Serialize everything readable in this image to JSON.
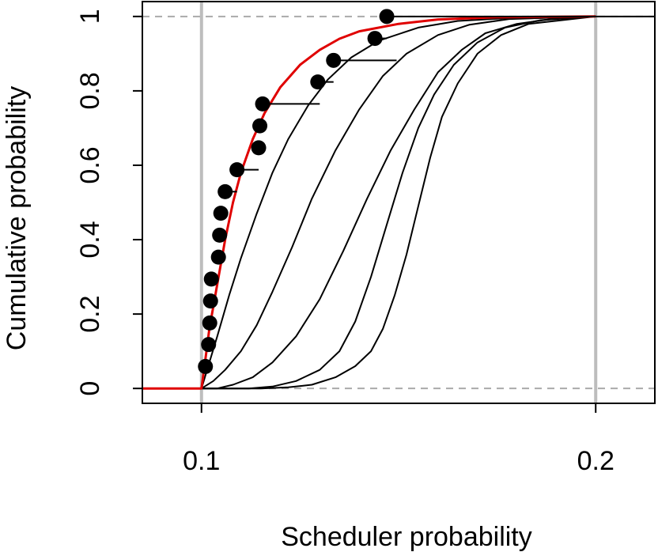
{
  "chart_data": {
    "type": "line",
    "title": "",
    "xlabel": "Scheduler probability",
    "ylabel": "Cumulative probability",
    "xlim": [
      0.085,
      0.215
    ],
    "ylim": [
      -0.04,
      1.04
    ],
    "x_ticks": [
      0.1,
      0.2
    ],
    "x_tick_labels": [
      "0.1",
      "0.2"
    ],
    "y_ticks": [
      0,
      0.2,
      0.4,
      0.6,
      0.8,
      1
    ],
    "y_tick_labels": [
      "0",
      "0.2",
      "0.4",
      "0.6",
      "0.8",
      "1"
    ],
    "vertical_reference_lines": [
      0.1,
      0.2
    ],
    "horizontal_reference_lines": [
      0,
      1
    ],
    "grid": false,
    "legend": "none",
    "colors": {
      "points": "#000000",
      "highlight_curve": "#e00000",
      "curves": "#000000",
      "reference_gray": "#bdbdbd",
      "dashed_gray": "#aaaaaa"
    },
    "empirical_points": [
      {
        "x": 0.101,
        "y": 0.059
      },
      {
        "x": 0.1018,
        "y": 0.118
      },
      {
        "x": 0.1021,
        "y": 0.176
      },
      {
        "x": 0.1023,
        "y": 0.235
      },
      {
        "x": 0.1025,
        "y": 0.294
      },
      {
        "x": 0.1043,
        "y": 0.353
      },
      {
        "x": 0.1046,
        "y": 0.412
      },
      {
        "x": 0.1049,
        "y": 0.471
      },
      {
        "x": 0.106,
        "y": 0.529,
        "step_end": 0.109
      },
      {
        "x": 0.109,
        "y": 0.588,
        "step_end": 0.1145
      },
      {
        "x": 0.1145,
        "y": 0.647
      },
      {
        "x": 0.1148,
        "y": 0.706
      },
      {
        "x": 0.1155,
        "y": 0.765,
        "step_end": 0.13
      },
      {
        "x": 0.1295,
        "y": 0.824,
        "step_end": 0.1335
      },
      {
        "x": 0.1335,
        "y": 0.882,
        "step_end": 0.1495
      },
      {
        "x": 0.144,
        "y": 0.941,
        "step_end": 0.147
      },
      {
        "x": 0.147,
        "y": 1.0,
        "step_end": 0.215
      }
    ],
    "series": [
      {
        "color": "#e00000",
        "points": [
          [
            0.085,
            0
          ],
          [
            0.1,
            0
          ],
          [
            0.101,
            0.08
          ],
          [
            0.102,
            0.16
          ],
          [
            0.104,
            0.28
          ],
          [
            0.106,
            0.4
          ],
          [
            0.108,
            0.5
          ],
          [
            0.11,
            0.58
          ],
          [
            0.113,
            0.67
          ],
          [
            0.116,
            0.74
          ],
          [
            0.12,
            0.81
          ],
          [
            0.125,
            0.87
          ],
          [
            0.13,
            0.91
          ],
          [
            0.135,
            0.94
          ],
          [
            0.14,
            0.96
          ],
          [
            0.15,
            0.98
          ],
          [
            0.16,
            0.992
          ],
          [
            0.175,
            0.998
          ],
          [
            0.2,
            1
          ]
        ]
      },
      {
        "color": "#000000",
        "points": [
          [
            0.085,
            0
          ],
          [
            0.1,
            0
          ],
          [
            0.102,
            0.07
          ],
          [
            0.104,
            0.14
          ],
          [
            0.107,
            0.25
          ],
          [
            0.11,
            0.35
          ],
          [
            0.114,
            0.47
          ],
          [
            0.118,
            0.58
          ],
          [
            0.122,
            0.67
          ],
          [
            0.127,
            0.76
          ],
          [
            0.132,
            0.83
          ],
          [
            0.138,
            0.89
          ],
          [
            0.145,
            0.935
          ],
          [
            0.155,
            0.97
          ],
          [
            0.165,
            0.988
          ],
          [
            0.18,
            0.997
          ],
          [
            0.2,
            1
          ]
        ]
      },
      {
        "color": "#000000",
        "points": [
          [
            0.085,
            0
          ],
          [
            0.1,
            0
          ],
          [
            0.103,
            0.02
          ],
          [
            0.106,
            0.05
          ],
          [
            0.11,
            0.1
          ],
          [
            0.114,
            0.17
          ],
          [
            0.118,
            0.26
          ],
          [
            0.123,
            0.38
          ],
          [
            0.128,
            0.51
          ],
          [
            0.134,
            0.64
          ],
          [
            0.14,
            0.75
          ],
          [
            0.146,
            0.84
          ],
          [
            0.152,
            0.9
          ],
          [
            0.16,
            0.95
          ],
          [
            0.168,
            0.978
          ],
          [
            0.178,
            0.993
          ],
          [
            0.2,
            1
          ]
        ]
      },
      {
        "color": "#000000",
        "points": [
          [
            0.085,
            0
          ],
          [
            0.104,
            0
          ],
          [
            0.108,
            0.01
          ],
          [
            0.113,
            0.03
          ],
          [
            0.118,
            0.07
          ],
          [
            0.124,
            0.14
          ],
          [
            0.13,
            0.24
          ],
          [
            0.136,
            0.37
          ],
          [
            0.142,
            0.51
          ],
          [
            0.148,
            0.64
          ],
          [
            0.154,
            0.75
          ],
          [
            0.16,
            0.85
          ],
          [
            0.166,
            0.91
          ],
          [
            0.172,
            0.955
          ],
          [
            0.18,
            0.98
          ],
          [
            0.19,
            0.995
          ],
          [
            0.2,
            1
          ]
        ]
      },
      {
        "color": "#000000",
        "points": [
          [
            0.085,
            0
          ],
          [
            0.112,
            0
          ],
          [
            0.118,
            0.005
          ],
          [
            0.124,
            0.02
          ],
          [
            0.13,
            0.05
          ],
          [
            0.135,
            0.1
          ],
          [
            0.139,
            0.18
          ],
          [
            0.143,
            0.3
          ],
          [
            0.147,
            0.44
          ],
          [
            0.151,
            0.58
          ],
          [
            0.155,
            0.7
          ],
          [
            0.159,
            0.79
          ],
          [
            0.164,
            0.87
          ],
          [
            0.17,
            0.93
          ],
          [
            0.177,
            0.97
          ],
          [
            0.186,
            0.99
          ],
          [
            0.2,
            1
          ]
        ]
      },
      {
        "color": "#000000",
        "points": [
          [
            0.085,
            0
          ],
          [
            0.115,
            0
          ],
          [
            0.122,
            0.003
          ],
          [
            0.128,
            0.01
          ],
          [
            0.134,
            0.03
          ],
          [
            0.139,
            0.06
          ],
          [
            0.143,
            0.1
          ],
          [
            0.146,
            0.16
          ],
          [
            0.149,
            0.25
          ],
          [
            0.152,
            0.36
          ],
          [
            0.155,
            0.49
          ],
          [
            0.158,
            0.62
          ],
          [
            0.161,
            0.73
          ],
          [
            0.165,
            0.82
          ],
          [
            0.17,
            0.9
          ],
          [
            0.176,
            0.95
          ],
          [
            0.183,
            0.98
          ],
          [
            0.2,
            1
          ]
        ]
      }
    ]
  }
}
